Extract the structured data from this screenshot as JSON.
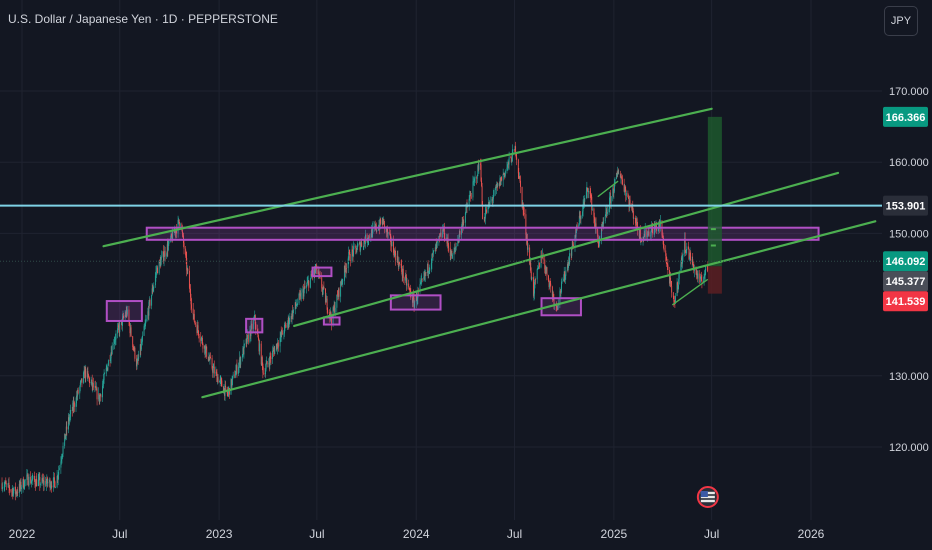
{
  "header": {
    "title": "U.S. Dollar / Japanese Yen · 1D · PEPPERSTONE",
    "currency_button": "JPY"
  },
  "colors": {
    "background": "#131722",
    "up": "#26a69a",
    "down": "#ef5350",
    "channel": "#4caf50",
    "zone": "#b14fc5",
    "horizontal": "#7fd3e6",
    "target_zone": "#1e5c2e",
    "stop_zone": "#5c1e22"
  },
  "chart_data": {
    "type": "candlestick",
    "ylim": [
      113.5,
      176.0
    ],
    "y_ticks": [
      {
        "value": 170,
        "label": "170.000"
      },
      {
        "value": 160,
        "label": "160.000"
      },
      {
        "value": 150,
        "label": "150.000"
      },
      {
        "value": 130,
        "label": "130.000"
      },
      {
        "value": 120,
        "label": "120.000"
      }
    ],
    "x_ticks": [
      {
        "date": "2022-01-01",
        "label": "2022"
      },
      {
        "date": "2022-07-01",
        "label": "Jul"
      },
      {
        "date": "2023-01-01",
        "label": "2023"
      },
      {
        "date": "2023-07-01",
        "label": "Jul"
      },
      {
        "date": "2024-01-01",
        "label": "2024"
      },
      {
        "date": "2024-07-01",
        "label": "Jul"
      },
      {
        "date": "2025-01-01",
        "label": "2025"
      },
      {
        "date": "2025-07-01",
        "label": "Jul"
      },
      {
        "date": "2026-01-01",
        "label": "2026"
      }
    ],
    "price_path": [
      [
        "2021-11-25",
        114.9
      ],
      [
        "2021-12-20",
        113.6
      ],
      [
        "2022-01-10",
        115.5
      ],
      [
        "2022-02-05",
        115.0
      ],
      [
        "2022-03-05",
        115.0
      ],
      [
        "2022-03-28",
        123.7
      ],
      [
        "2022-04-28",
        130.5
      ],
      [
        "2022-05-24",
        126.8
      ],
      [
        "2022-06-20",
        135.0
      ],
      [
        "2022-07-14",
        139.0
      ],
      [
        "2022-08-02",
        131.4
      ],
      [
        "2022-09-07",
        144.8
      ],
      [
        "2022-10-21",
        151.9
      ],
      [
        "2022-11-15",
        138.0
      ],
      [
        "2022-12-20",
        131.0
      ],
      [
        "2023-01-16",
        127.3
      ],
      [
        "2023-03-08",
        137.9
      ],
      [
        "2023-03-24",
        130.5
      ],
      [
        "2023-05-30",
        140.9
      ],
      [
        "2023-06-30",
        145.0
      ],
      [
        "2023-07-28",
        138.0
      ],
      [
        "2023-08-28",
        146.6
      ],
      [
        "2023-10-31",
        151.7
      ],
      [
        "2023-12-28",
        140.2
      ],
      [
        "2024-02-20",
        150.5
      ],
      [
        "2024-03-08",
        146.5
      ],
      [
        "2024-04-29",
        160.2
      ],
      [
        "2024-05-03",
        152.0
      ],
      [
        "2024-07-03",
        161.9
      ],
      [
        "2024-08-05",
        141.7
      ],
      [
        "2024-08-20",
        147.2
      ],
      [
        "2024-09-16",
        139.6
      ],
      [
        "2024-11-15",
        156.7
      ],
      [
        "2024-12-03",
        148.6
      ],
      [
        "2025-01-10",
        158.9
      ],
      [
        "2025-02-20",
        149.5
      ],
      [
        "2025-03-28",
        151.2
      ],
      [
        "2025-04-22",
        139.9
      ],
      [
        "2025-05-12",
        148.6
      ],
      [
        "2025-06-10",
        143.0
      ],
      [
        "2025-06-24",
        145.4
      ]
    ],
    "channel_lines": [
      {
        "from": [
          "2022-06-01",
          148.2
        ],
        "to": [
          "2025-07-01",
          167.5
        ]
      },
      {
        "from": [
          "2023-05-20",
          137.0
        ],
        "to": [
          "2026-02-20",
          158.5
        ]
      },
      {
        "from": [
          "2022-12-01",
          127.0
        ],
        "to": [
          "2026-04-30",
          151.7
        ]
      },
      {
        "from": [
          "2024-12-03",
          155.2
        ],
        "to": [
          "2025-01-08",
          157.3
        ]
      },
      {
        "from": [
          "2025-04-20",
          140.0
        ],
        "to": [
          "2025-06-23",
          143.5
        ]
      }
    ],
    "zones": [
      {
        "from": [
          "2022-06-07",
          140.5
        ],
        "to": [
          "2022-08-11",
          137.7
        ]
      },
      {
        "from": [
          "2022-08-20",
          150.8
        ],
        "to": [
          "2026-01-15",
          149.1
        ]
      },
      {
        "from": [
          "2023-02-20",
          138.0
        ],
        "to": [
          "2023-03-22",
          136.1
        ]
      },
      {
        "from": [
          "2023-06-23",
          145.2
        ],
        "to": [
          "2023-07-28",
          144.0
        ]
      },
      {
        "from": [
          "2023-07-14",
          138.2
        ],
        "to": [
          "2023-08-12",
          137.2
        ]
      },
      {
        "from": [
          "2023-11-15",
          141.3
        ],
        "to": [
          "2024-02-15",
          139.3
        ]
      },
      {
        "from": [
          "2024-08-20",
          140.9
        ],
        "to": [
          "2024-11-01",
          138.5
        ]
      }
    ],
    "horizontal_line": {
      "value": 153.901
    },
    "position": {
      "from": "2025-06-24",
      "to": "2025-07-20",
      "entry": 145.377,
      "target": 166.366,
      "stop": 141.539
    },
    "price_labels": [
      {
        "value": 166.366,
        "label": "166.366",
        "color": "#089981"
      },
      {
        "value": 153.901,
        "label": "153.901",
        "color": "#2a2e39"
      },
      {
        "value": 146.092,
        "label": "146.092",
        "color": "#089981"
      },
      {
        "value": 145.377,
        "label": "145.377",
        "color": "#4a4e58"
      },
      {
        "value": 141.539,
        "label": "141.539",
        "color": "#f23645"
      }
    ]
  }
}
